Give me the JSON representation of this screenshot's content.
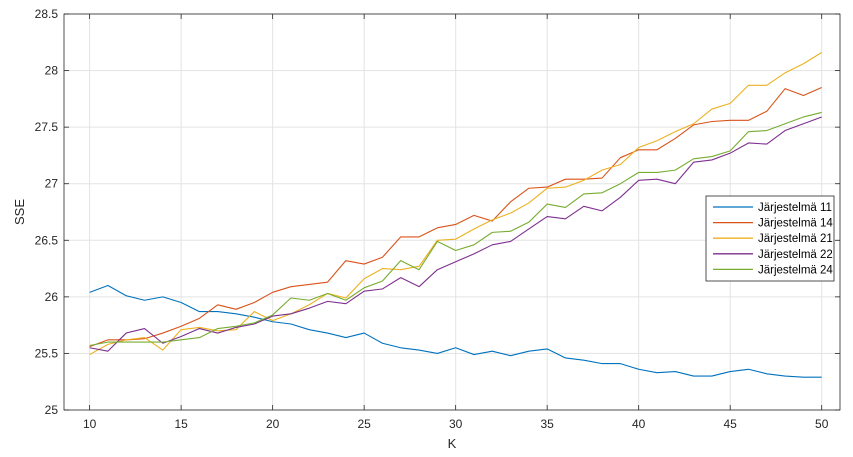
{
  "chart_data": {
    "type": "line",
    "title": "",
    "xlabel": "K",
    "ylabel": "SSE",
    "xlim": [
      8.6,
      51
    ],
    "ylim": [
      25,
      28.5
    ],
    "xticks": [
      10,
      15,
      20,
      25,
      30,
      35,
      40,
      45,
      50
    ],
    "xtick_labels": [
      "10",
      "15",
      "20",
      "25",
      "30",
      "35",
      "40",
      "45",
      "50"
    ],
    "yticks": [
      25,
      25.5,
      26,
      26.5,
      27,
      27.5,
      28,
      28.5
    ],
    "ytick_labels": [
      "25",
      "25.5",
      "26",
      "26.5",
      "27",
      "27.5",
      "28",
      "28.5"
    ],
    "grid": true,
    "legend_position": "right",
    "x": [
      10,
      11,
      12,
      13,
      14,
      15,
      16,
      17,
      18,
      19,
      20,
      21,
      22,
      23,
      24,
      25,
      26,
      27,
      28,
      29,
      30,
      31,
      32,
      33,
      34,
      35,
      36,
      37,
      38,
      39,
      40,
      41,
      42,
      43,
      44,
      45,
      46,
      47,
      48,
      49,
      50
    ],
    "series": [
      {
        "name": "Järjestelmä 11",
        "color": "#0072BD",
        "values": [
          26.04,
          26.1,
          26.01,
          25.97,
          26.0,
          25.95,
          25.87,
          25.87,
          25.85,
          25.82,
          25.78,
          25.76,
          25.71,
          25.68,
          25.64,
          25.68,
          25.59,
          25.55,
          25.53,
          25.5,
          25.55,
          25.49,
          25.52,
          25.48,
          25.52,
          25.54,
          25.46,
          25.44,
          25.41,
          25.41,
          25.36,
          25.33,
          25.34,
          25.3,
          25.3,
          25.34,
          25.36,
          25.32,
          25.3,
          25.29,
          25.29
        ]
      },
      {
        "name": "Järjestelmä 14",
        "color": "#D95319",
        "values": [
          25.56,
          25.62,
          25.62,
          25.63,
          25.68,
          25.74,
          25.81,
          25.93,
          25.89,
          25.95,
          26.04,
          26.09,
          26.11,
          26.13,
          26.32,
          26.29,
          26.35,
          26.53,
          26.53,
          26.61,
          26.64,
          26.72,
          26.67,
          26.84,
          26.96,
          26.97,
          27.04,
          27.04,
          27.05,
          27.23,
          27.3,
          27.3,
          27.4,
          27.52,
          27.55,
          27.56,
          27.56,
          27.64,
          27.84,
          27.78,
          27.85
        ]
      },
      {
        "name": "Järjestelmä 21",
        "color": "#EDB120",
        "values": [
          25.49,
          25.58,
          25.62,
          25.64,
          25.53,
          25.71,
          25.73,
          25.7,
          25.71,
          25.87,
          25.79,
          25.85,
          25.93,
          26.03,
          25.99,
          26.16,
          26.25,
          26.24,
          26.27,
          26.5,
          26.51,
          26.6,
          26.68,
          26.74,
          26.83,
          26.96,
          26.97,
          27.03,
          27.12,
          27.17,
          27.32,
          27.38,
          27.46,
          27.53,
          27.66,
          27.71,
          27.87,
          27.87,
          27.98,
          28.06,
          28.16
        ]
      },
      {
        "name": "Järjestelmä 22",
        "color": "#7E2F8E",
        "values": [
          25.55,
          25.52,
          25.68,
          25.72,
          25.59,
          25.65,
          25.72,
          25.68,
          25.73,
          25.76,
          25.83,
          25.85,
          25.9,
          25.96,
          25.94,
          26.05,
          26.07,
          26.17,
          26.09,
          26.24,
          26.31,
          26.38,
          26.46,
          26.49,
          26.6,
          26.71,
          26.69,
          26.8,
          26.76,
          26.88,
          27.03,
          27.04,
          27.0,
          27.19,
          27.21,
          27.27,
          27.36,
          27.35,
          27.47,
          27.53,
          27.59
        ]
      },
      {
        "name": "Järjestelmä 24",
        "color": "#77AC30",
        "values": [
          25.57,
          25.6,
          25.6,
          25.6,
          25.6,
          25.62,
          25.64,
          25.72,
          25.74,
          25.77,
          25.84,
          25.99,
          25.97,
          26.03,
          25.97,
          26.08,
          26.14,
          26.32,
          26.24,
          26.49,
          26.41,
          26.46,
          26.57,
          26.58,
          26.66,
          26.82,
          26.79,
          26.91,
          26.92,
          27.0,
          27.1,
          27.1,
          27.12,
          27.22,
          27.24,
          27.29,
          27.46,
          27.47,
          27.53,
          27.59,
          27.63
        ]
      }
    ]
  }
}
